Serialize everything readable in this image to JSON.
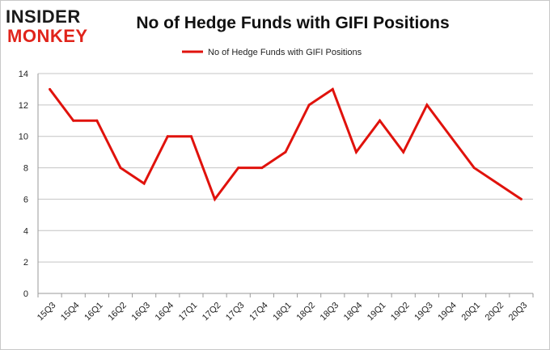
{
  "logo": {
    "line1": "INSIDER",
    "line2": "MONKEY",
    "dark_color": "#1a1a1a",
    "red_color": "#e0241b"
  },
  "chart_data": {
    "type": "line",
    "title": "No of Hedge Funds with GIFI Positions",
    "xlabel": "",
    "ylabel": "",
    "categories": [
      "15Q3",
      "15Q4",
      "16Q1",
      "16Q2",
      "16Q3",
      "16Q4",
      "17Q1",
      "17Q2",
      "17Q3",
      "17Q4",
      "18Q1",
      "18Q2",
      "18Q3",
      "18Q4",
      "19Q1",
      "19Q2",
      "19Q3",
      "19Q4",
      "20Q1",
      "20Q2",
      "20Q3"
    ],
    "series": [
      {
        "name": "No of Hedge Funds with GIFI Positions",
        "color": "#e0120c",
        "values": [
          13,
          11,
          11,
          8,
          7,
          10,
          10,
          6,
          8,
          8,
          9,
          12,
          13,
          9,
          11,
          9,
          12,
          10,
          8,
          7,
          6
        ]
      }
    ],
    "ylim": [
      0,
      14
    ],
    "yticks": [
      0,
      2,
      4,
      6,
      8,
      10,
      12,
      14
    ],
    "grid": true,
    "legend": "top-center"
  }
}
